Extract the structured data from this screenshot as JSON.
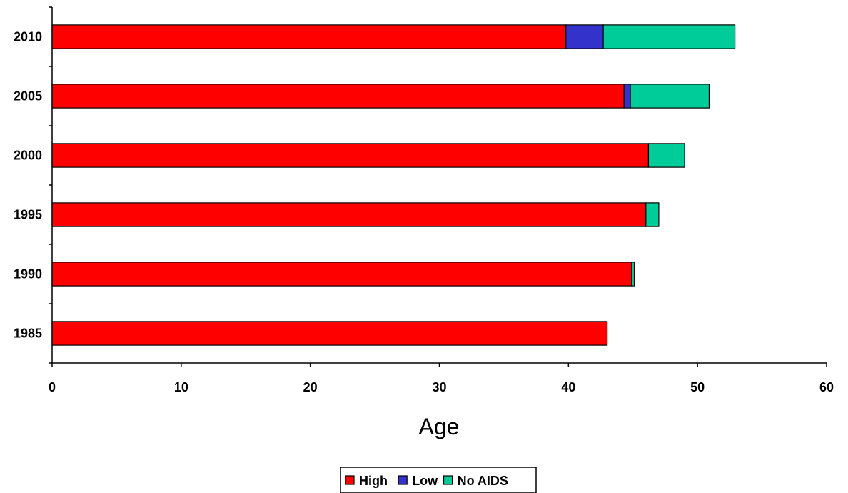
{
  "chart_data": {
    "type": "bar",
    "orientation": "horizontal",
    "stacked": true,
    "categories": [
      "1985",
      "1990",
      "1995",
      "2000",
      "2005",
      "2010"
    ],
    "series": [
      {
        "name": "High",
        "color": "#ff0000",
        "values": [
          43.0,
          44.9,
          46.0,
          46.2,
          44.3,
          39.8
        ]
      },
      {
        "name": "Low",
        "color": "#3333cc",
        "values": [
          0.0,
          0.0,
          0.0,
          0.0,
          0.5,
          2.9
        ]
      },
      {
        "name": "No AIDS",
        "color": "#00cc99",
        "values": [
          0.0,
          0.2,
          1.0,
          2.8,
          6.1,
          10.2
        ]
      }
    ],
    "xlabel": "Age",
    "ylabel": "",
    "title": "",
    "xlim": [
      0,
      60
    ],
    "xticks": [
      0,
      10,
      20,
      30,
      40,
      50,
      60
    ],
    "grid": false,
    "legend_position": "bottom"
  }
}
